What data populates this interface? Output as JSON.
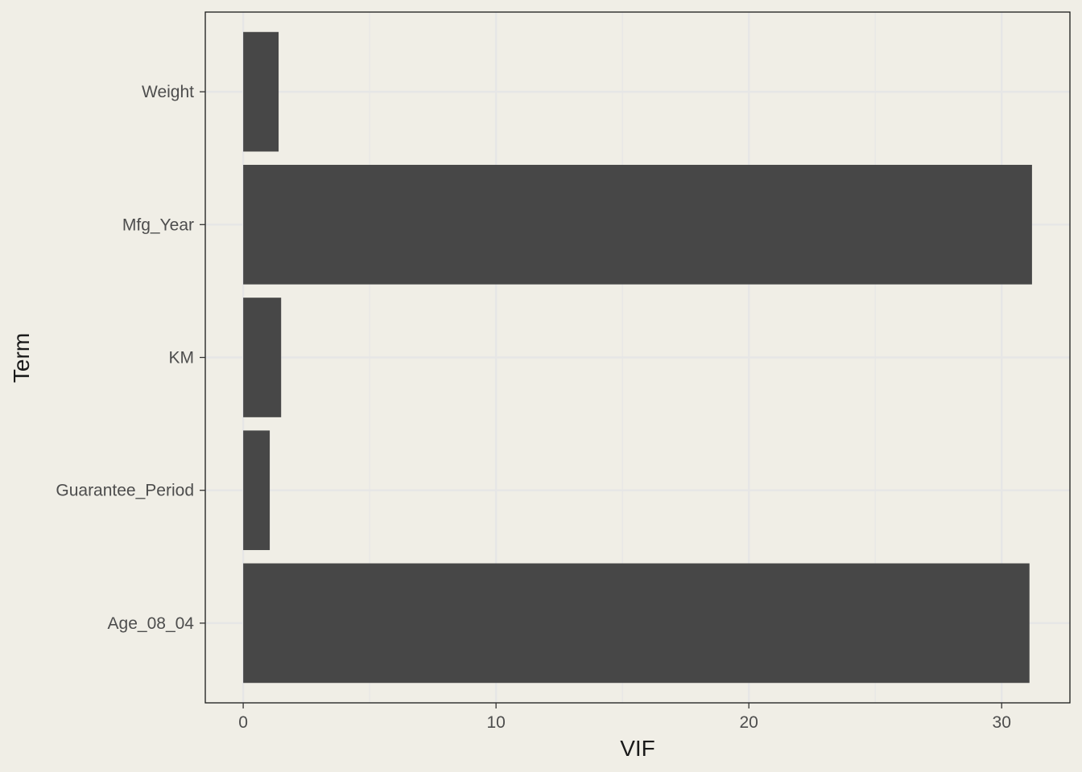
{
  "chart_data": {
    "type": "bar",
    "orientation": "horizontal",
    "categories": [
      "Age_08_04",
      "Guarantee_Period",
      "KM",
      "Mfg_Year",
      "Weight"
    ],
    "values": [
      31.1,
      1.05,
      1.5,
      31.2,
      1.4
    ],
    "xlabel": "VIF",
    "ylabel": "Term",
    "xlim": [
      -1.5,
      32.7
    ],
    "xticks": [
      0,
      10,
      20,
      30
    ],
    "x_minor_gridlines": [
      5,
      15,
      25
    ],
    "grid": true,
    "bar_color": "#474747",
    "background_color": "#F0EEE6",
    "grid_color": "#E6E6E6"
  }
}
